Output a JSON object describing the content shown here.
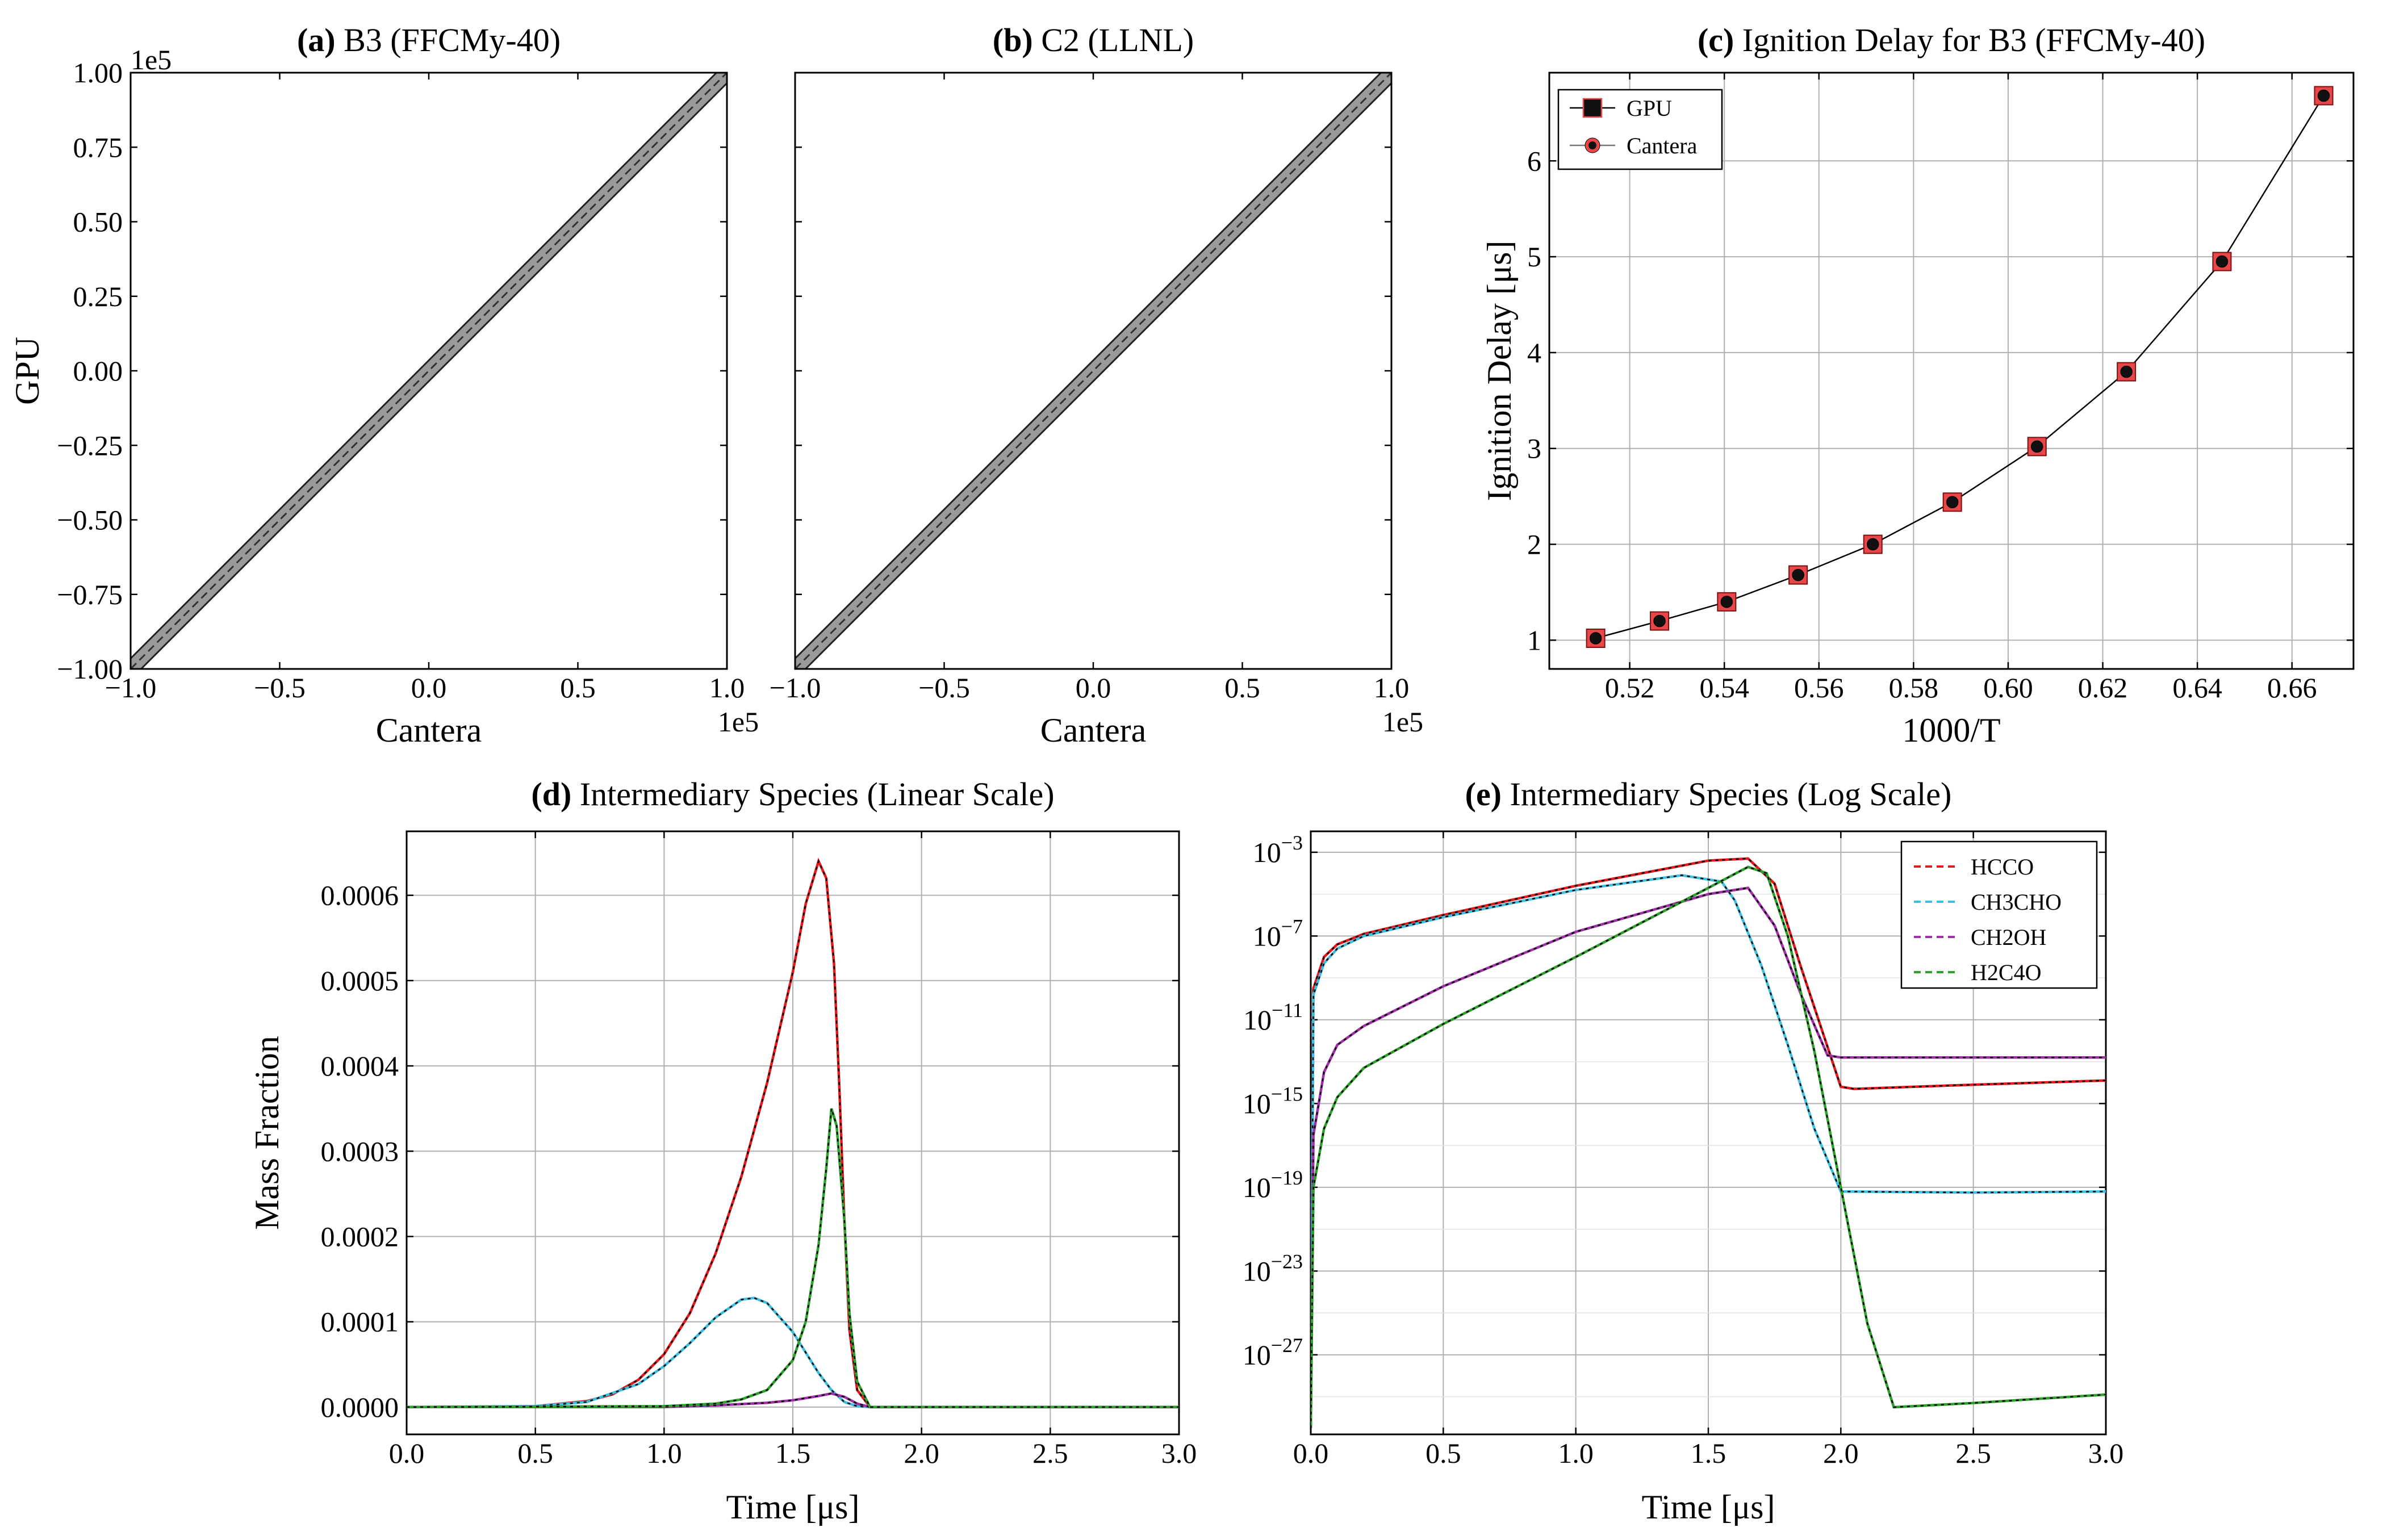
{
  "figure": {
    "panels": [
      "a",
      "b",
      "c",
      "d",
      "e"
    ]
  },
  "chart_data": [
    {
      "id": "a",
      "type": "scatter",
      "title_prefix": "(a)",
      "title": "B3 (FFCMy-40)",
      "xlabel": "Cantera",
      "ylabel": "GPU",
      "x_offset_label": "1e5",
      "y_offset_label": "1e5",
      "xlim": [
        -1.0,
        1.0
      ],
      "ylim": [
        -1.0,
        1.0
      ],
      "xticks": [
        -1.0,
        -0.5,
        0.0,
        0.5,
        1.0
      ],
      "xtick_labels": [
        "−1.0",
        "−0.5",
        "0.0",
        "0.5",
        "1.0"
      ],
      "yticks": [
        -1.0,
        -0.75,
        -0.5,
        -0.25,
        0.0,
        0.25,
        0.5,
        0.75,
        1.0
      ],
      "ytick_labels": [
        "−1.00",
        "−0.75",
        "−0.50",
        "−0.25",
        "0.00",
        "0.25",
        "0.50",
        "0.75",
        "1.00"
      ],
      "band_halfwidth": 0.035,
      "diagonal": [
        [
          -1.0,
          -1.0
        ],
        [
          1.0,
          1.0
        ]
      ]
    },
    {
      "id": "b",
      "type": "scatter",
      "title_prefix": "(b)",
      "title": "C2 (LLNL)",
      "xlabel": "Cantera",
      "x_offset_label": "1e5",
      "xlim": [
        -1.0,
        1.0
      ],
      "ylim": [
        -1.0,
        1.0
      ],
      "xticks": [
        -1.0,
        -0.5,
        0.0,
        0.5,
        1.0
      ],
      "xtick_labels": [
        "−1.0",
        "−0.5",
        "0.0",
        "0.5",
        "1.0"
      ],
      "band_halfwidth": 0.035,
      "diagonal": [
        [
          -1.0,
          -1.0
        ],
        [
          1.0,
          1.0
        ]
      ]
    },
    {
      "id": "c",
      "type": "line",
      "title_prefix": "(c)",
      "title": "Ignition Delay for B3 (FFCMy-40)",
      "xlabel": "1000/T",
      "ylabel": "Ignition Delay [μs]",
      "xlim": [
        0.503,
        0.673
      ],
      "ylim": [
        0.7,
        6.92
      ],
      "grid": true,
      "xticks": [
        0.52,
        0.54,
        0.56,
        0.58,
        0.6,
        0.62,
        0.64,
        0.66
      ],
      "xtick_labels": [
        "0.52",
        "0.54",
        "0.56",
        "0.58",
        "0.60",
        "0.62",
        "0.64",
        "0.66"
      ],
      "yticks": [
        1,
        2,
        3,
        4,
        5,
        6
      ],
      "ytick_labels": [
        "1",
        "2",
        "3",
        "4",
        "5",
        "6"
      ],
      "legend_position": "top-left",
      "series": [
        {
          "name": "GPU",
          "marker": "square",
          "color": "#e8474a",
          "x": [
            0.5128,
            0.5263,
            0.5405,
            0.5556,
            0.5714,
            0.5882,
            0.6061,
            0.625,
            0.6452,
            0.6667
          ],
          "y": [
            1.02,
            1.2,
            1.4,
            1.68,
            2.0,
            2.44,
            3.02,
            3.8,
            4.95,
            6.68
          ]
        },
        {
          "name": "Cantera",
          "marker": "circle",
          "color": "#111111",
          "x": [
            0.5128,
            0.5263,
            0.5405,
            0.5556,
            0.5714,
            0.5882,
            0.6061,
            0.625,
            0.6452,
            0.6667
          ],
          "y": [
            1.02,
            1.2,
            1.4,
            1.68,
            2.0,
            2.44,
            3.02,
            3.8,
            4.95,
            6.68
          ]
        }
      ]
    },
    {
      "id": "d",
      "type": "line",
      "title_prefix": "(d)",
      "title": "Intermediary Species (Linear Scale)",
      "xlabel": "Time [μs]",
      "ylabel": "Mass Fraction",
      "xlim": [
        0.0,
        3.0
      ],
      "ylim": [
        -3.2e-05,
        0.000675
      ],
      "grid": true,
      "xticks": [
        0.0,
        0.5,
        1.0,
        1.5,
        2.0,
        2.5,
        3.0
      ],
      "xtick_labels": [
        "0.0",
        "0.5",
        "1.0",
        "1.5",
        "2.0",
        "2.5",
        "3.0"
      ],
      "yticks": [
        0.0,
        0.0001,
        0.0002,
        0.0003,
        0.0004,
        0.0005,
        0.0006
      ],
      "ytick_labels": [
        "0.0000",
        "0.0001",
        "0.0002",
        "0.0003",
        "0.0004",
        "0.0005",
        "0.0006"
      ],
      "series": [
        {
          "name": "HCCO",
          "color": "#e41a1c",
          "x": [
            0.0,
            0.5,
            0.7,
            0.8,
            0.9,
            1.0,
            1.1,
            1.2,
            1.3,
            1.4,
            1.5,
            1.55,
            1.6,
            1.63,
            1.66,
            1.68,
            1.7,
            1.72,
            1.75,
            1.8,
            2.0,
            3.0
          ],
          "y": [
            0.0,
            1e-06,
            7e-06,
            1.5e-05,
            3.2e-05,
            6.2e-05,
            0.00011,
            0.00018,
            0.00027,
            0.00038,
            0.00051,
            0.00059,
            0.00064,
            0.00062,
            0.00052,
            0.00038,
            0.00022,
            9e-05,
            2e-05,
            0.0,
            0.0,
            0.0
          ]
        },
        {
          "name": "CH3CHO",
          "color": "#3fbfe0",
          "x": [
            0.0,
            0.5,
            0.7,
            0.9,
            1.0,
            1.1,
            1.2,
            1.3,
            1.35,
            1.4,
            1.5,
            1.6,
            1.65,
            1.7,
            1.75,
            1.8,
            3.0
          ],
          "y": [
            0.0,
            1e-06,
            6e-06,
            2.7e-05,
            4.8e-05,
            7.5e-05,
            0.000105,
            0.000126,
            0.000128,
            0.000122,
            8.8e-05,
            4e-05,
            2e-05,
            6e-06,
            1e-06,
            0.0,
            0.0
          ]
        },
        {
          "name": "CH2OH",
          "color": "#a030a8",
          "x": [
            0.0,
            1.0,
            1.2,
            1.4,
            1.5,
            1.6,
            1.65,
            1.7,
            1.75,
            1.8,
            3.0
          ],
          "y": [
            0.0,
            0.0,
            2e-06,
            5e-06,
            8e-06,
            1.3e-05,
            1.6e-05,
            1.2e-05,
            4e-06,
            0.0,
            0.0
          ]
        },
        {
          "name": "H2C4O",
          "color": "#2ea02c",
          "x": [
            0.0,
            1.0,
            1.2,
            1.3,
            1.4,
            1.5,
            1.55,
            1.6,
            1.63,
            1.65,
            1.67,
            1.7,
            1.72,
            1.75,
            1.8,
            3.0
          ],
          "y": [
            0.0,
            1e-06,
            4e-06,
            9e-06,
            2e-05,
            5.5e-05,
            0.0001,
            0.00019,
            0.00028,
            0.00035,
            0.00033,
            0.00022,
            0.00011,
            3e-05,
            0.0,
            0.0
          ]
        }
      ]
    },
    {
      "id": "e",
      "type": "line",
      "yscale": "log",
      "title_prefix": "(e)",
      "title": "Intermediary Species (Log Scale)",
      "xlabel": "Time [μs]",
      "xlim": [
        0.0,
        3.0
      ],
      "ylim_log10": [
        -30.8,
        -2.0
      ],
      "grid": true,
      "xticks": [
        0.0,
        0.5,
        1.0,
        1.5,
        2.0,
        2.5,
        3.0
      ],
      "xtick_labels": [
        "0.0",
        "0.5",
        "1.0",
        "1.5",
        "2.0",
        "2.5",
        "3.0"
      ],
      "ytick_exponents": [
        -27,
        -23,
        -19,
        -15,
        -11,
        -7,
        -3
      ],
      "ytick_base": "10",
      "ytick_labels": [
        "−27",
        "−23",
        "−19",
        "−15",
        "−11",
        "−7",
        "−3"
      ],
      "legend_position": "top-right",
      "series": [
        {
          "name": "HCCO",
          "color": "#e41a1c",
          "x": [
            0.0,
            0.01,
            0.05,
            0.1,
            0.2,
            0.5,
            1.0,
            1.5,
            1.65,
            1.75,
            1.85,
            1.95,
            2.0,
            2.05,
            2.5,
            3.0
          ],
          "log10y": [
            -30.5,
            -9.5,
            -8.0,
            -7.4,
            -6.9,
            -6.0,
            -4.6,
            -3.4,
            -3.3,
            -4.5,
            -8.5,
            -12.3,
            -14.2,
            -14.3,
            -14.1,
            -13.9
          ]
        },
        {
          "name": "CH3CHO",
          "color": "#3fbfe0",
          "x": [
            0.0,
            0.01,
            0.05,
            0.1,
            0.2,
            0.5,
            1.0,
            1.4,
            1.55,
            1.6,
            1.7,
            1.8,
            1.9,
            2.0,
            2.5,
            3.0
          ],
          "log10y": [
            -30.5,
            -9.8,
            -8.3,
            -7.6,
            -7.0,
            -6.1,
            -4.8,
            -4.1,
            -4.4,
            -5.3,
            -8.4,
            -12.2,
            -16.2,
            -19.2,
            -19.25,
            -19.2
          ]
        },
        {
          "name": "CH2OH",
          "color": "#a030a8",
          "x": [
            0.0,
            0.01,
            0.05,
            0.1,
            0.2,
            0.5,
            1.0,
            1.5,
            1.65,
            1.75,
            1.85,
            1.95,
            2.0,
            2.5,
            3.0
          ],
          "log10y": [
            -30.5,
            -16.5,
            -13.5,
            -12.2,
            -11.3,
            -9.4,
            -6.8,
            -5.0,
            -4.7,
            -6.5,
            -9.8,
            -12.7,
            -12.8,
            -12.8,
            -12.8
          ]
        },
        {
          "name": "H2C4O",
          "color": "#2ea02c",
          "x": [
            0.0,
            0.01,
            0.05,
            0.1,
            0.2,
            0.5,
            1.0,
            1.5,
            1.65,
            1.72,
            1.8,
            1.9,
            2.0,
            2.1,
            2.2,
            2.5,
            3.0
          ],
          "log10y": [
            -30.5,
            -19.0,
            -16.2,
            -14.7,
            -13.3,
            -11.2,
            -8.0,
            -4.7,
            -3.7,
            -4.0,
            -7.0,
            -12.5,
            -19.0,
            -25.5,
            -29.5,
            -29.3,
            -28.9
          ]
        }
      ]
    }
  ]
}
